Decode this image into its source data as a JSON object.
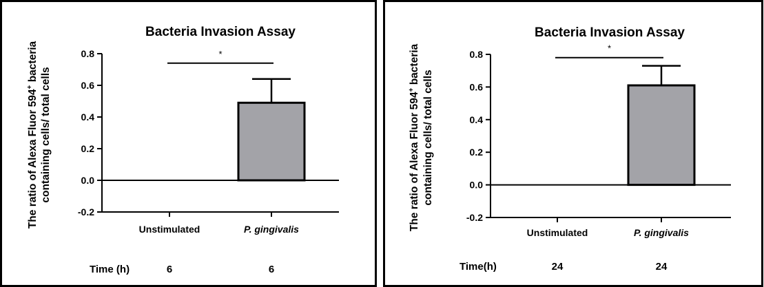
{
  "chart_data": [
    {
      "type": "bar",
      "title": "Bacteria Invasion Assay",
      "ylabel_line1": "The ratio of Alexa Fluor 594",
      "ylabel_sup": "+",
      "ylabel_line1_end": " bacteria",
      "ylabel_line2": "containing cells/ total cells",
      "categories": [
        "Unstimulated",
        "P. gingivalis"
      ],
      "italic_categories": [
        false,
        true
      ],
      "values": [
        0.0,
        0.49
      ],
      "errors": [
        0.0,
        0.15
      ],
      "bar_color": "#a3a3a8",
      "ylim": [
        -0.2,
        0.8
      ],
      "yticks": [
        -0.2,
        0.0,
        0.2,
        0.4,
        0.6,
        0.8
      ],
      "ytick_labels": [
        "-0.2",
        "0.0",
        "0.2",
        "0.4",
        "0.6",
        "0.8"
      ],
      "significance": "*",
      "significance_level": 0.74,
      "time_label": "Time (h)",
      "time_values": [
        "6",
        "6"
      ]
    },
    {
      "type": "bar",
      "title": "Bacteria Invasion Assay",
      "ylabel_line1": "The ratio of Alexa Fluor 594",
      "ylabel_sup": "+",
      "ylabel_line1_end": " bacteria",
      "ylabel_line2": "containing cells/ total cells",
      "categories": [
        "Unstimulated",
        "P. gingivalis"
      ],
      "italic_categories": [
        false,
        true
      ],
      "values": [
        0.0,
        0.61
      ],
      "errors": [
        0.0,
        0.12
      ],
      "bar_color": "#a3a3a8",
      "ylim": [
        -0.2,
        0.8
      ],
      "yticks": [
        -0.2,
        0.0,
        0.2,
        0.4,
        0.6,
        0.8
      ],
      "ytick_labels": [
        "-0.2",
        "0.0",
        "0.2",
        "0.4",
        "0.6",
        "0.8"
      ],
      "significance": "*",
      "significance_level": 0.78,
      "time_label": "Time(h)",
      "time_values": [
        "24",
        "24"
      ]
    }
  ]
}
